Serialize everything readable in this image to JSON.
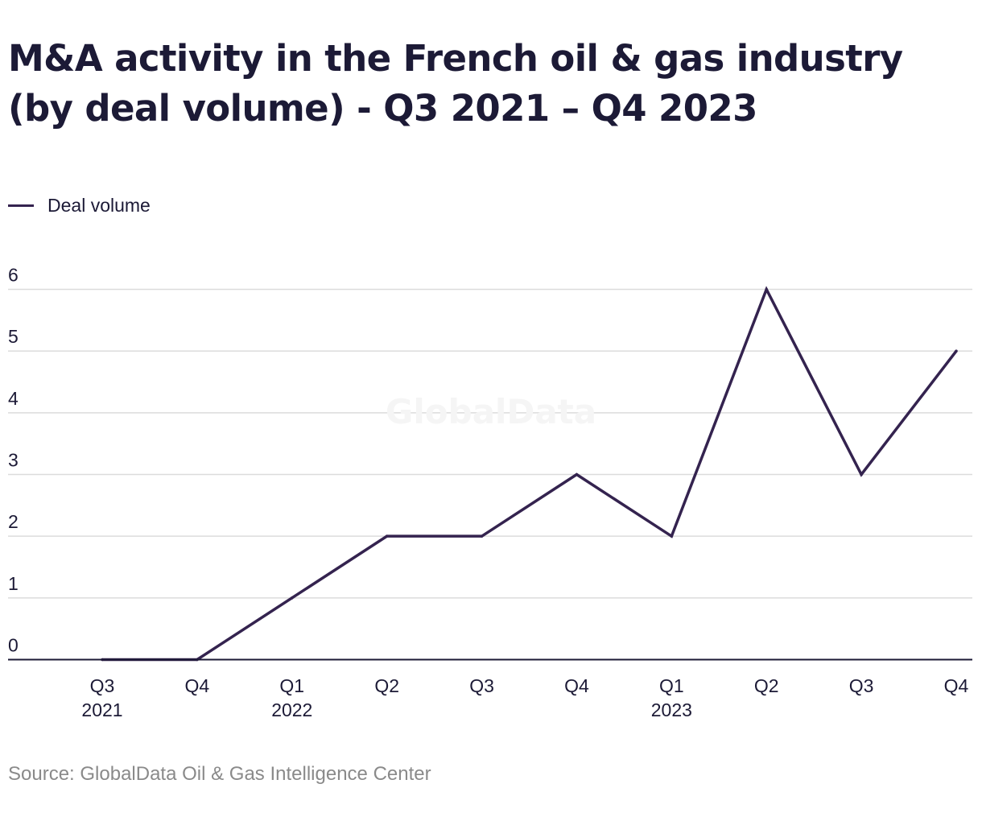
{
  "title": "M&A activity in the French oil & gas industry (by deal volume) - Q3 2021 – Q4 2023",
  "legend": {
    "label": "Deal volume"
  },
  "watermark": "GlobalData",
  "source": "Source: GlobalData Oil & Gas Intelligence Center",
  "colors": {
    "line": "#34234f",
    "grid": "#dcdcdc",
    "axis": "#1c1a36",
    "text": "#1c1a36"
  },
  "chart_data": {
    "type": "line",
    "title": "M&A activity in the French oil & gas industry (by deal volume) - Q3 2021 – Q4 2023",
    "xlabel": "",
    "ylabel": "",
    "categories": [
      [
        "Q3",
        "2021"
      ],
      [
        "Q4"
      ],
      [
        "Q1",
        "2022"
      ],
      [
        "Q2"
      ],
      [
        "Q3"
      ],
      [
        "Q4"
      ],
      [
        "Q1",
        "2023"
      ],
      [
        "Q2"
      ],
      [
        "Q3"
      ],
      [
        "Q4"
      ]
    ],
    "series": [
      {
        "name": "Deal volume",
        "values": [
          0,
          0,
          1,
          2,
          2,
          3,
          2,
          6,
          3,
          5
        ]
      }
    ],
    "ylim": [
      0,
      6
    ],
    "yticks": [
      0,
      1,
      2,
      3,
      4,
      5,
      6
    ],
    "grid": true,
    "legend_position": "top-left"
  }
}
